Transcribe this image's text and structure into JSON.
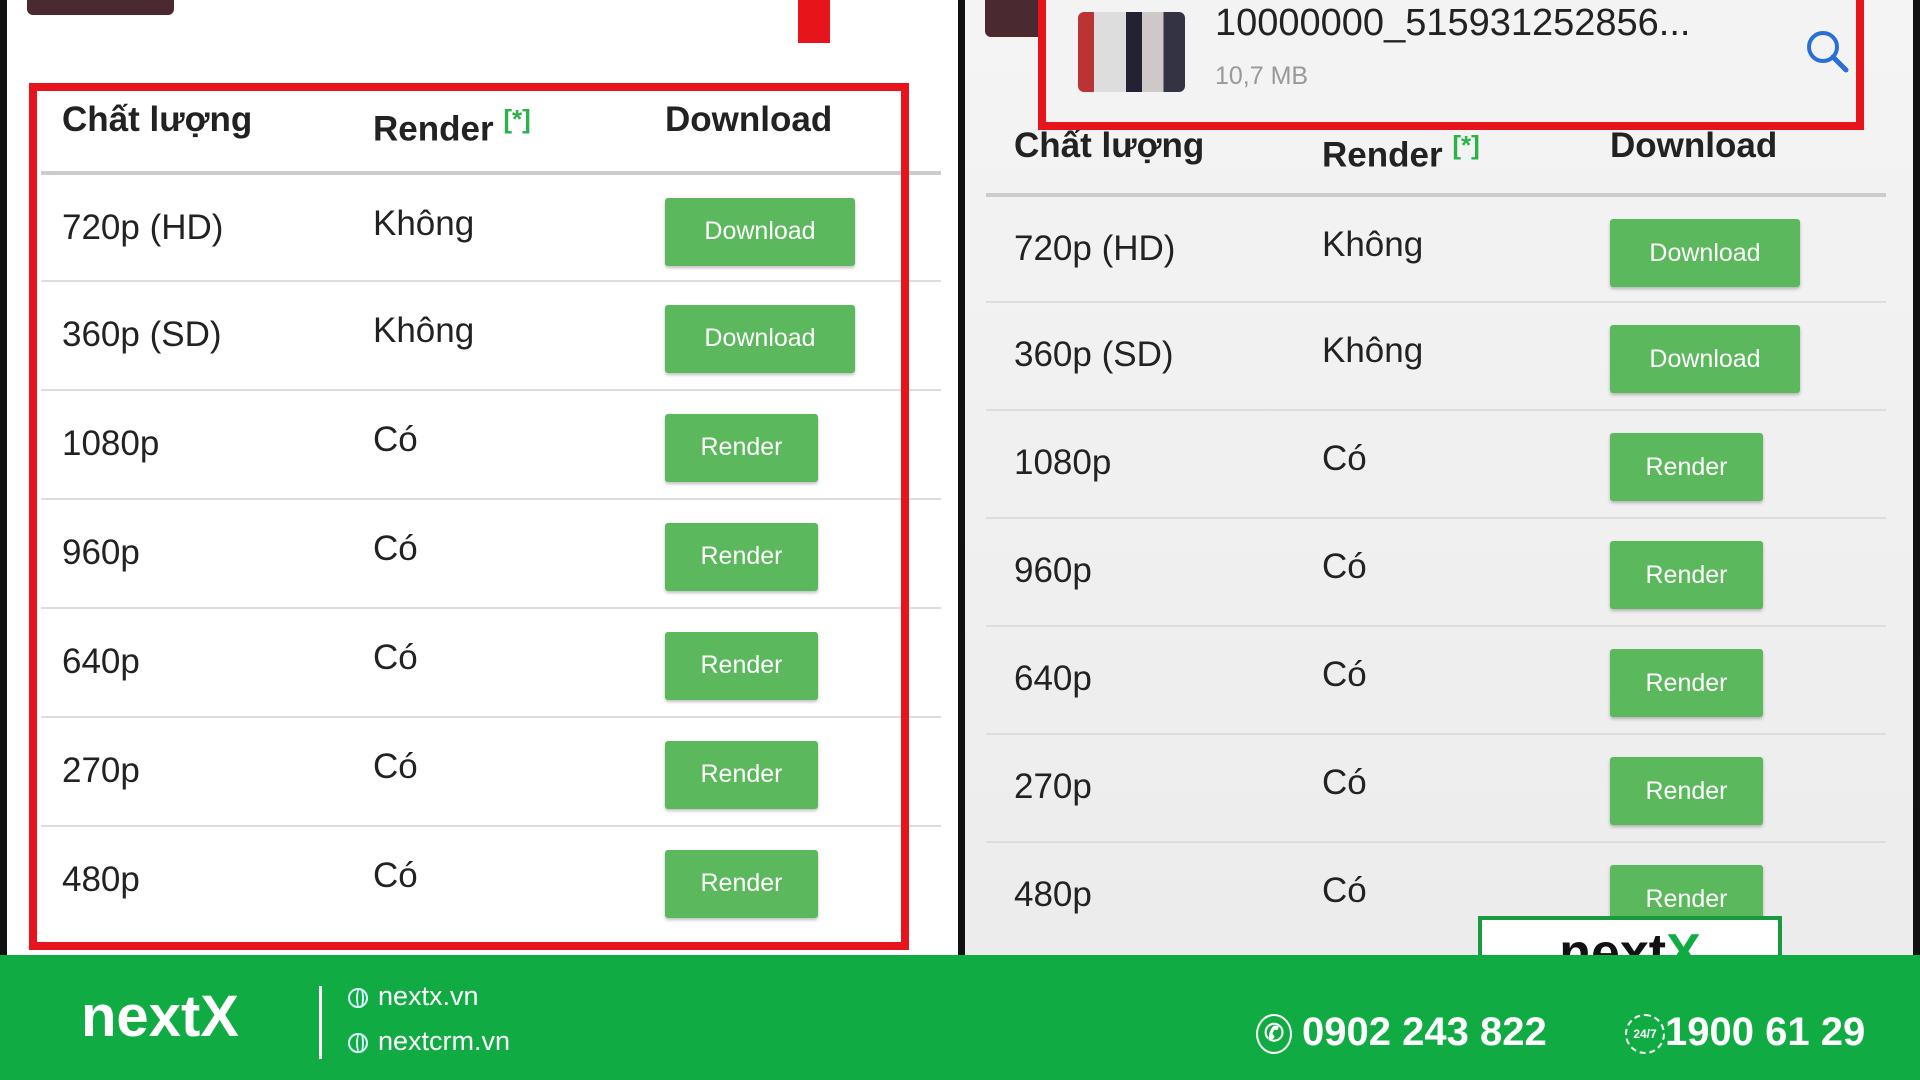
{
  "left": {
    "headers": {
      "quality": "Chất lượng",
      "render": "Render",
      "render_note": "[*]",
      "download": "Download"
    },
    "rows": [
      {
        "quality": "720p (HD)",
        "render": "Không",
        "action": "Download"
      },
      {
        "quality": "360p (SD)",
        "render": "Không",
        "action": "Download"
      },
      {
        "quality": "1080p",
        "render": "Có",
        "action": "Render"
      },
      {
        "quality": "960p",
        "render": "Có",
        "action": "Render"
      },
      {
        "quality": "640p",
        "render": "Có",
        "action": "Render"
      },
      {
        "quality": "270p",
        "render": "Có",
        "action": "Render"
      },
      {
        "quality": "480p",
        "render": "Có",
        "action": "Render"
      }
    ]
  },
  "right": {
    "file": {
      "name": "10000000_515931252856...",
      "size": "10,7 MB",
      "icon": "search-icon"
    },
    "headers": {
      "quality": "Chất lượng",
      "render": "Render",
      "render_note": "[*]",
      "download": "Download"
    },
    "rows": [
      {
        "quality": "720p (HD)",
        "render": "Không",
        "action": "Download"
      },
      {
        "quality": "360p (SD)",
        "render": "Không",
        "action": "Download"
      },
      {
        "quality": "1080p",
        "render": "Có",
        "action": "Render"
      },
      {
        "quality": "960p",
        "render": "Có",
        "action": "Render"
      },
      {
        "quality": "640p",
        "render": "Có",
        "action": "Render"
      },
      {
        "quality": "270p",
        "render": "Có",
        "action": "Render"
      },
      {
        "quality": "480p",
        "render": "Có",
        "action": "Render"
      }
    ]
  },
  "badge": {
    "brand": "next",
    "brand_x": "X"
  },
  "footer": {
    "brand": "nextX",
    "sites": [
      "nextx.vn",
      "nextcrm.vn"
    ],
    "phone": "0902 243 822",
    "hotline": "1900 61 29"
  },
  "colors": {
    "green": "#10ac43",
    "button": "#5cb85c",
    "highlight": "#e8141b"
  }
}
